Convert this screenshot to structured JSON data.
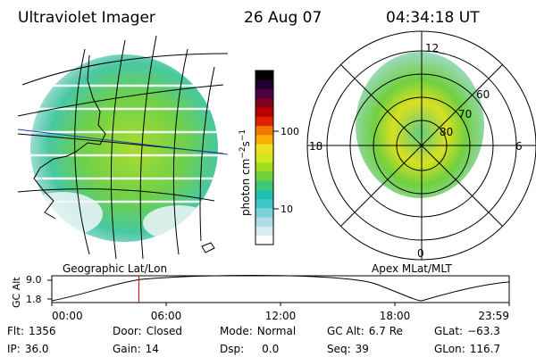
{
  "header": {
    "title": "Ultraviolet Imager",
    "date": "26 Aug 07",
    "time": "04:34:18 UT"
  },
  "left_panel": {
    "label": "Geographic Lat/Lon"
  },
  "right_panel": {
    "label": "Apex MLat/MLT",
    "mlt_labels": [
      "12",
      "18",
      "6",
      "0"
    ],
    "mlat_labels": [
      "60",
      "70",
      "80"
    ]
  },
  "colorbar": {
    "unit_base": "photon cm",
    "unit_exp1": "−2",
    "unit_mid": "s",
    "unit_exp2": "−1",
    "ticks": [
      "100",
      "10"
    ],
    "colors": [
      "#ffffff",
      "#d8ecf4",
      "#b0dce8",
      "#80d0d8",
      "#40c8c8",
      "#20c0b0",
      "#40c878",
      "#70d040",
      "#a0dc20",
      "#d0e820",
      "#f0e020",
      "#f8b000",
      "#f07800",
      "#e02000",
      "#b80000",
      "#800020",
      "#500040",
      "#200030",
      "#000000"
    ]
  },
  "altitude_plot": {
    "ylabel": "GC Alt",
    "y_ticks": [
      "9.0",
      "1.8"
    ],
    "x_ticks": [
      "00:00",
      "06:00",
      "12:00",
      "18:00",
      "23:59"
    ],
    "cursor_hour": 4.57
  },
  "info": {
    "flt_label": "Flt:",
    "flt_value": "1356",
    "ip_label": "IP:",
    "ip_value": "36.0",
    "door_label": "Door:",
    "door_value": "Closed",
    "gain_label": "Gain:",
    "gain_value": "14",
    "mode_label": "Mode:",
    "mode_value": "Normal",
    "dsp_label": "Dsp:",
    "dsp_value": "0.0",
    "gcalt_label": "GC Alt:",
    "gcalt_value": "6.7 Re",
    "seq_label": "Seq:",
    "seq_value": "39",
    "glat_label": "GLat:",
    "glat_value": "−63.3",
    "glon_label": "GLon:",
    "glon_value": "116.7"
  }
}
